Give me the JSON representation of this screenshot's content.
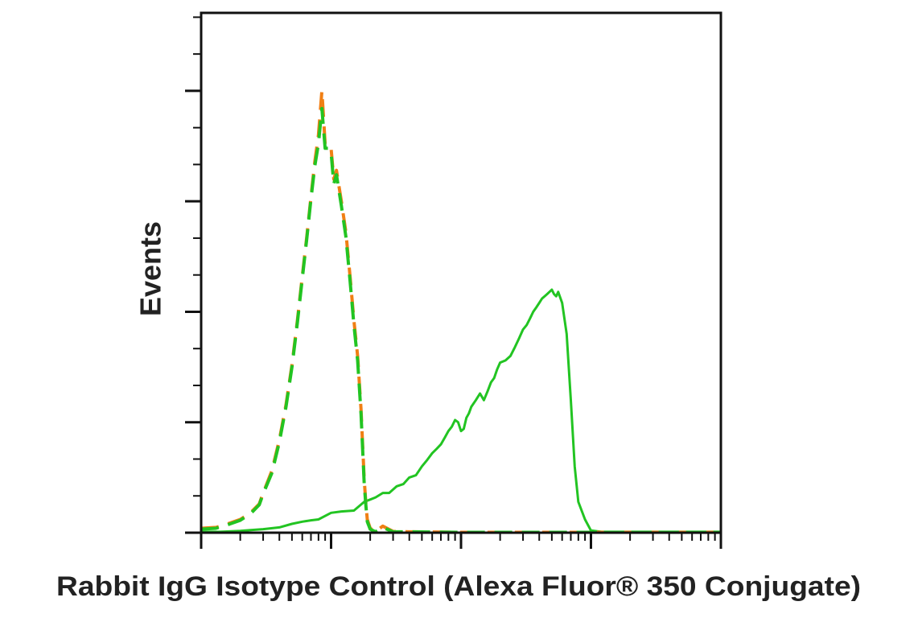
{
  "chart_data": {
    "type": "line",
    "title": "",
    "xlabel": "Rabbit IgG Isotype Control (Alexa Fluor® 350 Conjugate)",
    "ylabel": "Events",
    "x_scale": "log",
    "xlim": [
      1,
      10000
    ],
    "ylim": [
      0,
      100
    ],
    "tick_labels_shown": false,
    "grid": false,
    "legend": "none",
    "series": [
      {
        "color": "#22c422",
        "style": "solid",
        "x": [
          1.0,
          1.4,
          2.0,
          2.4,
          3.0,
          4.0,
          5.0,
          6.0,
          7.0,
          8.0,
          10.0,
          12.0,
          15.0,
          18.0,
          20.0,
          22.0,
          25.0,
          28.0,
          32.0,
          36.0,
          40.0,
          45.0,
          50.0,
          55.0,
          60.0,
          65.0,
          70.0,
          75.0,
          80.0,
          85.0,
          90.0,
          95.0,
          100.0,
          105.0,
          110.0,
          115.0,
          120.0,
          130.0,
          140.0,
          150.0,
          160.0,
          170.0,
          180.0,
          190.0,
          200.0,
          220.0,
          240.0,
          260.0,
          280.0,
          300.0,
          320.0,
          340.0,
          360.0,
          380.0,
          400.0,
          420.0,
          440.0,
          460.0,
          480.0,
          500.0,
          520.0,
          540.0,
          560.0,
          600.0,
          650.0,
          700.0,
          750.0,
          800.0,
          900.0,
          1000.0,
          1200.0,
          1500.0,
          2000.0,
          3000.0,
          10000.0
        ],
        "y": [
          0.2,
          0.2,
          0.4,
          0.6,
          0.8,
          1.2,
          2.0,
          2.5,
          2.8,
          3.0,
          4.5,
          4.8,
          5.0,
          7.0,
          7.5,
          8.0,
          9.0,
          9.0,
          10.5,
          11.0,
          12.5,
          13.0,
          15.0,
          16.5,
          18.0,
          19.0,
          20.0,
          21.5,
          23.0,
          24.0,
          25.5,
          25.0,
          23.0,
          23.5,
          26.0,
          27.0,
          28.5,
          30.0,
          31.5,
          30.0,
          32.0,
          34.0,
          35.0,
          37.0,
          38.5,
          39.0,
          40.0,
          42.0,
          44.0,
          46.0,
          47.0,
          48.5,
          50.0,
          51.0,
          52.0,
          53.0,
          53.5,
          54.0,
          54.5,
          55.0,
          54.0,
          53.5,
          54.5,
          52.0,
          45.0,
          30.0,
          15.0,
          7.0,
          3.0,
          0.5,
          0.2,
          0.2,
          0.2,
          0.2,
          0.2
        ]
      },
      {
        "color": "#f07f14",
        "style": "dashed",
        "x": [
          1.0,
          1.3,
          1.6,
          2.0,
          2.4,
          2.8,
          3.0,
          3.5,
          4.0,
          4.5,
          5.0,
          5.5,
          6.0,
          6.5,
          7.0,
          7.5,
          8.0,
          8.5,
          9.0,
          9.5,
          10.0,
          10.5,
          11.0,
          12.0,
          13.0,
          14.0,
          15.0,
          16.0,
          17.0,
          18.0,
          18.5,
          19.0,
          20.0,
          22.0,
          25.0,
          30.0,
          40.0,
          100.0,
          1000.0,
          10000.0
        ],
        "y": [
          1.0,
          1.2,
          2.0,
          3.0,
          4.5,
          6.5,
          9.0,
          14.0,
          21.0,
          29.0,
          38.0,
          48.0,
          58.0,
          67.0,
          76.0,
          84.0,
          90.0,
          100.0,
          88.0,
          88.0,
          87.0,
          80.0,
          82.0,
          75.0,
          68.0,
          58.0,
          48.0,
          40.0,
          28.0,
          12.0,
          7.0,
          3.0,
          1.0,
          0.3,
          1.5,
          0.3,
          0.2,
          0.1,
          0.1,
          0.1
        ]
      },
      {
        "color": "#22c422",
        "style": "dashed",
        "x": [
          1.0,
          1.3,
          1.6,
          2.0,
          2.4,
          2.8,
          3.0,
          3.5,
          4.0,
          4.5,
          5.0,
          5.5,
          6.0,
          6.5,
          7.0,
          7.5,
          8.0,
          8.5,
          9.0,
          9.5,
          10.0,
          10.5,
          11.0,
          12.0,
          13.0,
          14.0,
          15.0,
          16.0,
          17.0,
          18.0,
          18.5,
          19.0,
          20.0,
          22.0,
          25.0,
          30.0,
          40.0,
          100.0,
          1000.0,
          10000.0
        ],
        "y": [
          0.8,
          1.0,
          1.8,
          2.8,
          4.3,
          6.3,
          8.8,
          13.5,
          20.5,
          28.5,
          37.5,
          47.5,
          57.5,
          66.5,
          75.5,
          83.0,
          88.0,
          96.0,
          87.0,
          87.0,
          86.0,
          79.0,
          81.0,
          74.0,
          67.0,
          57.0,
          47.0,
          39.0,
          27.0,
          11.0,
          6.5,
          2.5,
          0.8,
          0.2,
          1.2,
          0.2,
          0.2,
          0.1,
          0.1,
          0.1
        ]
      }
    ]
  }
}
